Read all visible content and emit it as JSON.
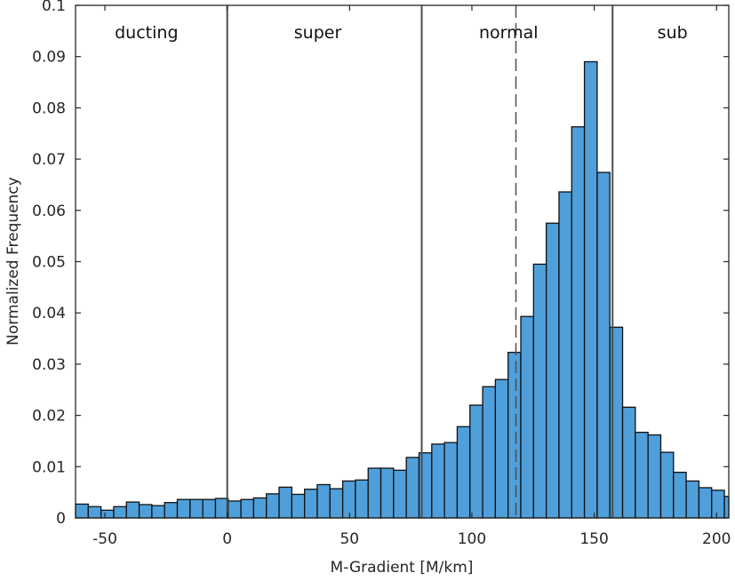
{
  "chart_data": {
    "type": "bar",
    "title": "",
    "xlabel": "M-Gradient [M/km]",
    "ylabel": "Normalized Frequency",
    "xlim": [
      -62,
      205
    ],
    "ylim": [
      0,
      0.1
    ],
    "bin_width": 5.2,
    "bin_start": -62,
    "values": [
      0.0027,
      0.0022,
      0.0015,
      0.0022,
      0.0031,
      0.0026,
      0.0024,
      0.003,
      0.0036,
      0.0036,
      0.0036,
      0.0038,
      0.0033,
      0.0036,
      0.0039,
      0.0047,
      0.006,
      0.0046,
      0.0056,
      0.0065,
      0.0057,
      0.0072,
      0.0074,
      0.0097,
      0.0097,
      0.0093,
      0.0118,
      0.0127,
      0.0144,
      0.0147,
      0.0178,
      0.022,
      0.0256,
      0.027,
      0.0323,
      0.0393,
      0.0495,
      0.0575,
      0.0636,
      0.0763,
      0.089,
      0.0674,
      0.0372,
      0.0216,
      0.0167,
      0.0162,
      0.0128,
      0.0089,
      0.0072,
      0.0059,
      0.0054,
      0.0042,
      0.003,
      0.0028,
      0.0025,
      0.0019,
      0.0024
    ],
    "vertical_lines": [
      {
        "x": 0,
        "style": "solid"
      },
      {
        "x": 79.5,
        "style": "solid"
      },
      {
        "x": 157.5,
        "style": "solid"
      },
      {
        "x": 118,
        "style": "dashed"
      }
    ],
    "regions": [
      {
        "label": "ducting",
        "x": -33
      },
      {
        "label": "super",
        "x": 37
      },
      {
        "label": "normal",
        "x": 115
      },
      {
        "label": "sub",
        "x": 182
      }
    ],
    "xticks": [
      -50,
      0,
      50,
      100,
      150,
      200
    ],
    "xtick_labels": [
      "-50",
      "0",
      "50",
      "100",
      "150",
      "200"
    ],
    "yticks": [
      0,
      0.01,
      0.02,
      0.03,
      0.04,
      0.05,
      0.06,
      0.07,
      0.08,
      0.09,
      0.1
    ],
    "ytick_labels": [
      "0",
      "0.01",
      "0.02",
      "0.03",
      "0.04",
      "0.05",
      "0.06",
      "0.07",
      "0.08",
      "0.09",
      "0.1"
    ],
    "grid": false,
    "colors": {
      "bar_fill": "#4f9fdb",
      "bar_edge": "#111111",
      "line": "#4d4d4d",
      "axis": "#262626"
    }
  }
}
